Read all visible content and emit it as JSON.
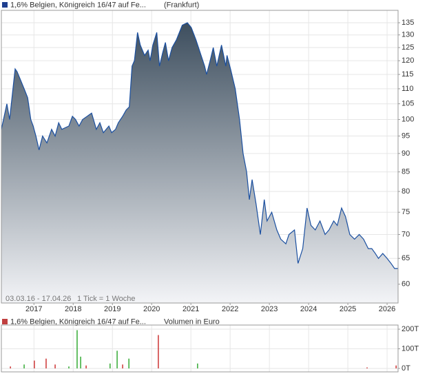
{
  "chart_data": [
    {
      "type": "area",
      "title": "1,6% Belgien, Königreich 16/47 auf Fe...",
      "exchange": "(Frankfurt)",
      "footnote": "03.03.16 - 17.04.26",
      "interval_note": "1 Tick = 1 Woche",
      "legend_color": "#1f3f8f",
      "line_color": "#1a4fa0",
      "fill_top": "#3d4e5e",
      "fill_bottom": "#f3f4f7",
      "yscale": "log",
      "grid": true,
      "xlim": [
        2016.17,
        2026.28
      ],
      "xticks": [
        2017,
        2018,
        2019,
        2020,
        2021,
        2022,
        2023,
        2024,
        2025,
        2026
      ],
      "ylim": [
        56.6,
        140.3
      ],
      "yticks": [
        60,
        65,
        70,
        75,
        80,
        85,
        90,
        95,
        100,
        105,
        110,
        115,
        120,
        125,
        130,
        135
      ],
      "x": [
        2016.17,
        2016.31,
        2016.38,
        2016.52,
        2016.57,
        2016.66,
        2016.75,
        2016.84,
        2016.92,
        2016.98,
        2017.05,
        2017.13,
        2017.22,
        2017.33,
        2017.45,
        2017.54,
        2017.63,
        2017.71,
        2017.89,
        2017.98,
        2018.06,
        2018.15,
        2018.24,
        2018.47,
        2018.59,
        2018.68,
        2018.77,
        2018.91,
        2018.98,
        2019.08,
        2019.15,
        2019.26,
        2019.35,
        2019.43,
        2019.5,
        2019.56,
        2019.64,
        2019.71,
        2019.82,
        2019.91,
        2019.96,
        2020.03,
        2020.13,
        2020.2,
        2020.28,
        2020.35,
        2020.43,
        2020.52,
        2020.63,
        2020.78,
        2020.91,
        2021.01,
        2021.13,
        2021.26,
        2021.35,
        2021.4,
        2021.49,
        2021.57,
        2021.66,
        2021.78,
        2021.89,
        2021.92,
        2022.01,
        2022.13,
        2022.24,
        2022.33,
        2022.42,
        2022.49,
        2022.56,
        2022.66,
        2022.77,
        2022.87,
        2022.94,
        2023.06,
        2023.19,
        2023.29,
        2023.42,
        2023.5,
        2023.64,
        2023.73,
        2023.85,
        2023.96,
        2024.06,
        2024.17,
        2024.29,
        2024.42,
        2024.52,
        2024.64,
        2024.73,
        2024.84,
        2024.94,
        2025.05,
        2025.17,
        2025.29,
        2025.4,
        2025.52,
        2025.61,
        2025.7,
        2025.78,
        2025.89,
        2026.0,
        2026.1,
        2026.19,
        2026.28
      ],
      "y": [
        97,
        105,
        100,
        117,
        116,
        113,
        110,
        107,
        100,
        98,
        95,
        91,
        95,
        93,
        97,
        95,
        99,
        97,
        98,
        101,
        100,
        98,
        100,
        102,
        97,
        99,
        96,
        98,
        96,
        97,
        99,
        101,
        103,
        104,
        118,
        120,
        131,
        126,
        122,
        124,
        120,
        126,
        131,
        118,
        123,
        127,
        120,
        125,
        128,
        134,
        135,
        133,
        128,
        122,
        118,
        115,
        120,
        125,
        118,
        126,
        118,
        122,
        117,
        110,
        100,
        90,
        85,
        78,
        83,
        77,
        70,
        78,
        73,
        75,
        71,
        69,
        68,
        70,
        71,
        64,
        67,
        76,
        72,
        71,
        73,
        70,
        71,
        73,
        72,
        76,
        74,
        70,
        69,
        70,
        69,
        67,
        67,
        66,
        65,
        66,
        65,
        64,
        63,
        63
      ]
    },
    {
      "type": "bar",
      "title": "1,6% Belgien, Königreich 16/47 auf Fe...",
      "unit_label": "Volumen in Euro",
      "legend_color": "#c04040",
      "xlim": [
        2016.17,
        2026.28
      ],
      "ylim": [
        0,
        221
      ],
      "yticks": [
        {
          "value": 0,
          "label": "0T"
        },
        {
          "value": 100,
          "label": "100T"
        },
        {
          "value": 200,
          "label": "200T"
        }
      ],
      "x": [
        2016.4,
        2016.75,
        2017.01,
        2017.31,
        2017.54,
        2017.89,
        2018.1,
        2018.19,
        2018.33,
        2018.94,
        2019.12,
        2019.26,
        2019.42,
        2020.17,
        2021.17,
        2025.49,
        2026.23
      ],
      "values": [
        10,
        20,
        40,
        50,
        20,
        10,
        195,
        60,
        15,
        25,
        90,
        20,
        50,
        170,
        25,
        5,
        15
      ],
      "colors": [
        "#cc3333",
        "#33aa33",
        "#cc3333",
        "#cc3333",
        "#cc3333",
        "#33aa33",
        "#33aa33",
        "#33aa33",
        "#cc3333",
        "#33aa33",
        "#33aa33",
        "#cc3333",
        "#33aa33",
        "#cc3333",
        "#33aa33",
        "#cc3333",
        "#cc3333"
      ]
    }
  ]
}
